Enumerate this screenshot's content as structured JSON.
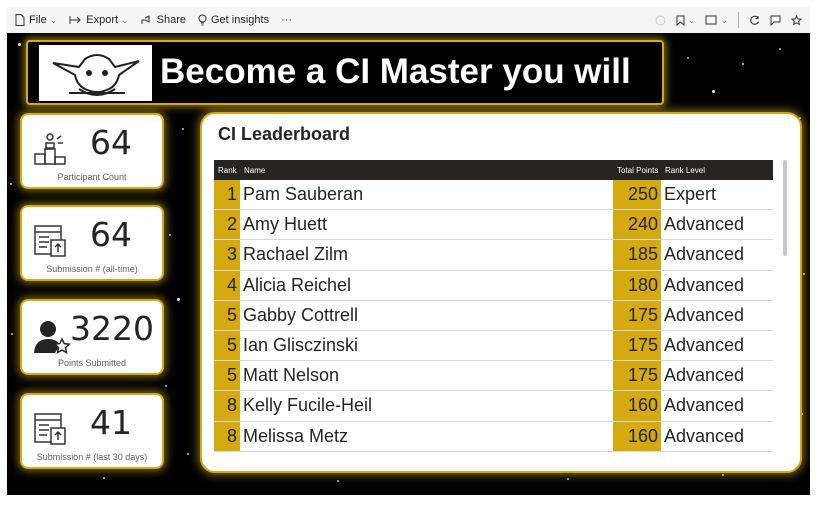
{
  "toolbar": {
    "file_label": "File",
    "export_label": "Export",
    "share_label": "Share",
    "insights_label": "Get insights",
    "more_label": "···"
  },
  "banner": {
    "title": "Become a CI Master you will"
  },
  "cards": [
    {
      "value": "64",
      "label": "Participant Count",
      "icon": "podium-icon"
    },
    {
      "value": "64",
      "label": "Submission # (all-time)",
      "icon": "form-upload-icon"
    },
    {
      "value": "3220",
      "label": "Points Submitted",
      "icon": "user-star-icon"
    },
    {
      "value": "41",
      "label": "Submission # (last 30 days)",
      "icon": "form-upload-icon"
    }
  ],
  "leaderboard": {
    "title": "CI Leaderboard",
    "headers": {
      "rank": "Rank",
      "name": "Name",
      "points": "Total Points",
      "level": "Rank Level"
    },
    "rows": [
      {
        "rank": "1",
        "name": "Pam Sauberan",
        "points": "250",
        "level": "Expert"
      },
      {
        "rank": "2",
        "name": "Amy Huett",
        "points": "240",
        "level": "Advanced"
      },
      {
        "rank": "3",
        "name": "Rachael Zilm",
        "points": "185",
        "level": "Advanced"
      },
      {
        "rank": "4",
        "name": "Alicia Reichel",
        "points": "180",
        "level": "Advanced"
      },
      {
        "rank": "5",
        "name": "Gabby Cottrell",
        "points": "175",
        "level": "Advanced"
      },
      {
        "rank": "5",
        "name": "Ian Glisczinski",
        "points": "175",
        "level": "Advanced"
      },
      {
        "rank": "5",
        "name": "Matt Nelson",
        "points": "175",
        "level": "Advanced"
      },
      {
        "rank": "8",
        "name": "Kelly Fucile-Heil",
        "points": "160",
        "level": "Advanced"
      },
      {
        "rank": "8",
        "name": "Melissa Metz",
        "points": "160",
        "level": "Advanced"
      }
    ]
  },
  "colors": {
    "accent": "#d4aa10",
    "canvas": "#000000",
    "card_bg": "#ffffff"
  }
}
